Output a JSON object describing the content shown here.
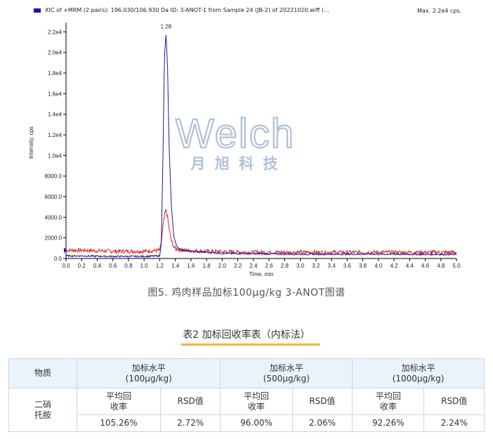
{
  "chart_data": {
    "type": "line",
    "legend_text": "XIC of +MRM (2 pairs): 196.030/106.930 Da ID: 3-ANOT-1 from Sample 24 (JB-2) of 20221020.wiff (...",
    "max_label": "Max. 2.2e4 cps.",
    "xlabel": "Time, min",
    "ylabel": "Intensity, cps",
    "xlim": [
      0.0,
      5.0
    ],
    "ylim": [
      0,
      22500
    ],
    "x_ticks": [
      "0.0",
      "0.2",
      "0.4",
      "0.6",
      "0.8",
      "1.0",
      "1.2",
      "1.4",
      "1.6",
      "1.8",
      "2.0",
      "2.2",
      "2.4",
      "2.6",
      "2.8",
      "3.0",
      "3.2",
      "3.4",
      "3.6",
      "3.8",
      "4.0",
      "4.2",
      "4.4",
      "4.6",
      "4.8",
      "5.0"
    ],
    "y_ticks": [
      {
        "value": 0,
        "label": "0.0"
      },
      {
        "value": 2000,
        "label": "2000.0"
      },
      {
        "value": 4000,
        "label": "4000.0"
      },
      {
        "value": 6000,
        "label": "6000.0"
      },
      {
        "value": 8000,
        "label": "8000.0"
      },
      {
        "value": 10000,
        "label": "1.0e4"
      },
      {
        "value": 12000,
        "label": "1.2e4"
      },
      {
        "value": 14000,
        "label": "1.4e4"
      },
      {
        "value": 16000,
        "label": "1.6e4"
      },
      {
        "value": 18000,
        "label": "1.8e4"
      },
      {
        "value": 20000,
        "label": "2.0e4"
      },
      {
        "value": 22000,
        "label": "2.2e4"
      }
    ],
    "peak_label": {
      "x": 1.28,
      "y": 22000,
      "text": "1.28"
    },
    "series": [
      {
        "color": "#1a1aa6",
        "x": [
          0.0,
          0.2,
          0.4,
          0.6,
          0.8,
          1.0,
          1.2,
          1.22,
          1.24,
          1.26,
          1.28,
          1.3,
          1.32,
          1.35,
          1.38,
          1.42,
          1.5,
          1.6,
          1.8,
          2.0,
          2.5,
          3.0,
          3.5,
          4.0,
          4.5,
          5.0
        ],
        "y": [
          250,
          250,
          220,
          200,
          200,
          200,
          250,
          1500,
          9000,
          19500,
          21800,
          18500,
          11000,
          5000,
          2200,
          1100,
          800,
          700,
          600,
          500,
          450,
          420,
          420,
          420,
          400,
          400
        ]
      },
      {
        "color": "#e02020",
        "x": [
          0.0,
          0.2,
          0.4,
          0.6,
          0.8,
          1.0,
          1.2,
          1.22,
          1.24,
          1.26,
          1.28,
          1.3,
          1.32,
          1.35,
          1.38,
          1.42,
          1.5,
          1.6,
          1.8,
          2.0,
          2.5,
          3.0,
          3.5,
          4.0,
          4.5,
          5.0
        ],
        "y": [
          800,
          800,
          750,
          700,
          700,
          700,
          800,
          1500,
          3000,
          4200,
          4700,
          4000,
          2900,
          1700,
          1100,
          900,
          800,
          750,
          700,
          650,
          600,
          600,
          600,
          600,
          600,
          600
        ]
      }
    ]
  },
  "watermark": {
    "latin": "Welch",
    "cjk": "月 旭 科 技"
  },
  "figure_caption": "图5. 鸡肉样品加标100μg/kg 3-ANOT图谱",
  "table": {
    "title": "表2 加标回收率表（内标法）",
    "col_substance": "物质",
    "levels": [
      {
        "line1": "加标水平",
        "line2": "(100μg/kg)"
      },
      {
        "line1": "加标水平",
        "line2": "(500μg/kg)"
      },
      {
        "line1": "加标水平",
        "line2": "(1000μg/kg)"
      }
    ],
    "sub_headers": {
      "recovery_line1": "平均回",
      "recovery_line2": "收率",
      "rsd": "RSD值"
    },
    "compound_line1": "二硝",
    "compound_line2": "托胺",
    "values": [
      {
        "recovery": "105.26%",
        "rsd": "2.72%"
      },
      {
        "recovery": "96.00%",
        "rsd": "2.06%"
      },
      {
        "recovery": "92.26%",
        "rsd": "2.24%"
      }
    ]
  }
}
